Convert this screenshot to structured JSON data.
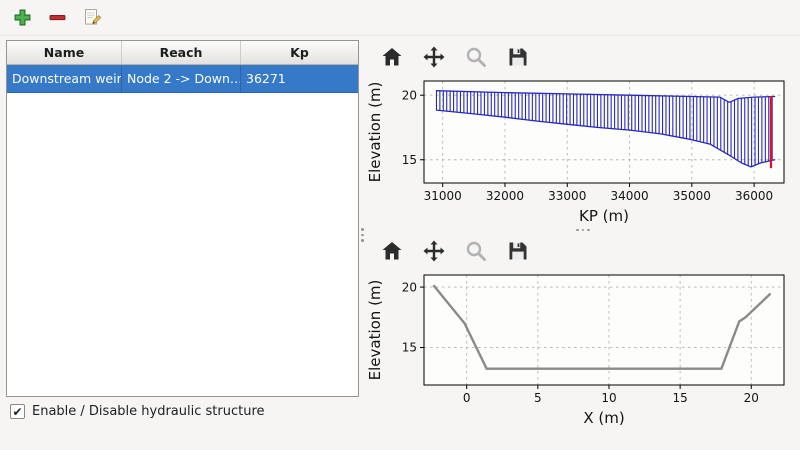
{
  "main_toolbar": {
    "icons": [
      {
        "name": "add-structure",
        "glyph": "plus",
        "color": "#4caf50"
      },
      {
        "name": "remove-structure",
        "glyph": "minus",
        "color": "#c62f2f"
      },
      {
        "name": "edit-structure",
        "glyph": "pencil-on-sheet",
        "color": "#f2c14e"
      }
    ]
  },
  "table": {
    "columns": [
      "Name",
      "Reach",
      "Kp"
    ],
    "rows": [
      {
        "name": "Downstream weir",
        "reach": "Node 2 -> Down…",
        "kp": "36271"
      }
    ],
    "selected_row": 0
  },
  "controls": {
    "checkbox_label": "Enable / Disable hydraulic structure",
    "checkbox_checked": true,
    "check_glyph": "✔"
  },
  "plot_toolbar": {
    "icons": [
      "home",
      "pan",
      "zoom",
      "save"
    ],
    "disabled": [
      "zoom"
    ]
  },
  "colors": {
    "selection_blue": "#3579c8",
    "hatch_blue": "#2929b8",
    "marker_red": "#e0102c",
    "profile_gray": "#8a8a8a"
  },
  "chart_data": [
    {
      "type": "line",
      "title": "Longitudinal profile with cross-section hatching",
      "xlabel": "KP (m)",
      "ylabel": "Elevation (m)",
      "xlim": [
        30700,
        36480
      ],
      "ylim": [
        13.2,
        21.1
      ],
      "xticks": [
        31000,
        32000,
        33000,
        34000,
        35000,
        36000
      ],
      "yticks": [
        15,
        20
      ],
      "grid": true,
      "series": [
        {
          "name": "bed-profile",
          "color": "#2929b8",
          "width": 1.3,
          "x": [
            30900,
            31500,
            32000,
            32500,
            33000,
            33500,
            34000,
            34500,
            35000,
            35300,
            35600,
            35800,
            35950,
            36100,
            36330
          ],
          "y": [
            18.85,
            18.55,
            18.3,
            18.0,
            17.75,
            17.5,
            17.3,
            17.0,
            16.55,
            16.2,
            15.35,
            14.75,
            14.45,
            14.75,
            15.0
          ]
        },
        {
          "name": "bank-top-profile",
          "color": "#2929b8",
          "width": 1.3,
          "x": [
            30900,
            32000,
            33000,
            34000,
            35000,
            35450,
            35600,
            35750,
            36000,
            36330
          ],
          "y": [
            20.35,
            20.2,
            20.1,
            20.0,
            19.9,
            19.85,
            19.45,
            19.75,
            19.85,
            19.9
          ]
        }
      ],
      "hatch": {
        "between": [
          0,
          1
        ],
        "step": 55,
        "color": "#2929b8",
        "width": 1.1
      },
      "vline": {
        "x": 36271,
        "y0": 14.35,
        "y1": 19.95,
        "color": "#e0102c",
        "width": 2.2,
        "label": "structure-position"
      }
    },
    {
      "type": "line",
      "title": "Cross-section at structure",
      "xlabel": "X (m)",
      "ylabel": "Elevation (m)",
      "xlim": [
        -3.0,
        22.3
      ],
      "ylim": [
        11.9,
        21.0
      ],
      "xticks": [
        0,
        5,
        10,
        15,
        20
      ],
      "yticks": [
        15,
        20
      ],
      "grid": true,
      "series": [
        {
          "name": "cross-section-profile",
          "color": "#8a8a8a",
          "width": 2.4,
          "x": [
            -2.3,
            -0.15,
            1.4,
            17.9,
            19.15,
            19.6,
            21.3
          ],
          "y": [
            20.1,
            17.0,
            13.25,
            13.25,
            17.15,
            17.5,
            19.4
          ]
        }
      ]
    }
  ]
}
